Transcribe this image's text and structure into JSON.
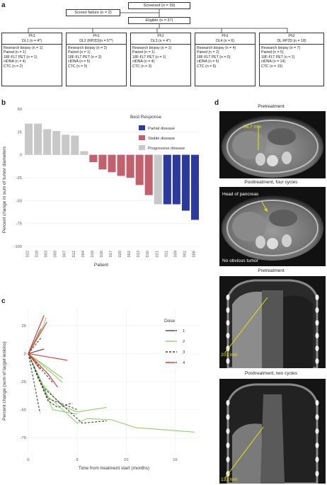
{
  "panel_a": {
    "letter": "a",
    "screened": "Screened (n = 39)",
    "screen_failure": "Screen failure (n = 2)",
    "eligible": "Eligible (n = 37)",
    "arms": [
      {
        "hdr1": "Ph1",
        "hdr2": "DL1 (n = 4*)",
        "lines": [
          "Research biopsy (n = 1)",
          "Paired (n = 1)",
          "18F-FLT PET (n = 1)",
          "ctDNA (n = 4)",
          "CTC (n = 2)"
        ]
      },
      {
        "hdr1": "Ph1",
        "hdr2": "DL2 (RP2D)(n = 5**)",
        "lines": [
          "Research biopsy (n = 2)",
          "Paired (n = 1)",
          "18F-FLT PET (n = 3)",
          "ctDNA (n = 5)",
          "CTC (n = 5)"
        ]
      },
      {
        "hdr1": "Ph1",
        "hdr2": "DL3 (n = 4*)",
        "lines": [
          "Research biopsy (n = 1)",
          "Paired (n = 1)",
          "18F-FLT PET (n = 1)",
          "ctDNA (n = 4)",
          "CTC (n = 3)"
        ]
      },
      {
        "hdr1": "Ph1",
        "hdr2": "DL4 (n = 6)",
        "lines": [
          "Research biopsy (n = 4)",
          "Paired (n = 2)",
          "18F-FLT PET (n = 0)",
          "ctDNA (n = 5)",
          "CTC (n = 5)"
        ]
      },
      {
        "hdr1": "Ph2",
        "hdr2": "DL RP2D (n = 18)",
        "lines": [
          "Research biopsy (n = 7)",
          "Paired (n = 5)",
          "18F-FLT PET (n = 1)",
          "ctDNA (n = 14)",
          "CTC (n = 15)"
        ]
      }
    ]
  },
  "panel_b": {
    "letter": "b",
    "ylabel": "Percent change in sum of tumor diameters",
    "xlabel": "Patient",
    "legend_title": "Best Response",
    "legend_items": [
      "Partial disease",
      "Stable disease",
      "Progressive disease"
    ],
    "colors": {
      "pd": "#c8c8c8",
      "sd": "#c2606e",
      "pr": "#2b3a9c"
    }
  },
  "panel_c": {
    "letter": "c",
    "ylabel": "Percent change (sum of target lesions)",
    "xlabel": "Time from treatment start (months)",
    "legend_title": "Dose",
    "legend_items": [
      "1",
      "2",
      "3",
      "4"
    ],
    "colors": [
      "#444444",
      "#8fcf6e",
      "#444444",
      "#d93030"
    ]
  },
  "panel_d": {
    "letter": "d",
    "titles": [
      "Pretreatment",
      "Posttreatment, four cycles",
      "Pretreatment",
      "Posttreatment, two cycles"
    ],
    "annotations": [
      "56.7 mm",
      "Head of pancreas",
      "No obvious tumor",
      "201 mm",
      "131 mm"
    ]
  },
  "chart_data": [
    {
      "type": "bar",
      "categories": [
        "022",
        "018",
        "003",
        "005",
        "007",
        "012",
        "004",
        "019",
        "016",
        "017",
        "020",
        "002",
        "013",
        "010",
        "021",
        "011",
        "009",
        "001",
        "006"
      ],
      "values": [
        34,
        34,
        28,
        26,
        22,
        21,
        4,
        -8,
        -16,
        -19,
        -23,
        -25,
        -33,
        -44,
        -54,
        -54,
        -54,
        -61,
        -71
      ],
      "response": [
        "pd",
        "pd",
        "pd",
        "pd",
        "pd",
        "pd",
        "pd",
        "sd",
        "sd",
        "sd",
        "sd",
        "sd",
        "sd",
        "sd",
        "pd",
        "pr",
        "pr",
        "pr",
        "pr"
      ],
      "yticks": [
        50,
        25,
        0,
        -25,
        -50,
        -75,
        -100
      ],
      "ylim": [
        -100,
        50
      ]
    },
    {
      "type": "line",
      "xticks": [
        0,
        5,
        10,
        15
      ],
      "yticks": [
        25,
        0,
        -25,
        -50,
        -75
      ],
      "xlim": [
        0,
        17.5
      ],
      "ylim": [
        -90,
        40
      ],
      "series": [
        {
          "name": "1",
          "dash": false,
          "points": [
            [
              0,
              0
            ],
            [
              1.1,
              18
            ]
          ]
        },
        {
          "name": "1",
          "dash": false,
          "points": [
            [
              0,
              0
            ],
            [
              1.3,
              22
            ]
          ]
        },
        {
          "name": "1",
          "dash": false,
          "points": [
            [
              0,
              0
            ],
            [
              1.6,
              4
            ]
          ]
        },
        {
          "name": "2",
          "dash": false,
          "points": [
            [
              0,
              0
            ],
            [
              1.6,
              26
            ],
            [
              1.8,
              32
            ]
          ]
        },
        {
          "name": "2",
          "dash": false,
          "points": [
            [
              0,
              0
            ],
            [
              2.5,
              -18
            ],
            [
              3.5,
              -26
            ]
          ]
        },
        {
          "name": "2",
          "dash": false,
          "points": [
            [
              0,
              0
            ],
            [
              1.5,
              -28
            ],
            [
              3.5,
              -47
            ],
            [
              5,
              -52
            ],
            [
              8,
              -48
            ]
          ]
        },
        {
          "name": "2",
          "dash": false,
          "points": [
            [
              0,
              0
            ],
            [
              2,
              -38
            ],
            [
              5,
              -62
            ],
            [
              6,
              -58
            ],
            [
              8.5,
              -59
            ],
            [
              11,
              -66
            ],
            [
              17,
              -70
            ]
          ]
        },
        {
          "name": "2",
          "dash": false,
          "points": [
            [
              0,
              0
            ],
            [
              2.5,
              -50
            ],
            [
              5,
              -54
            ]
          ]
        },
        {
          "name": "2",
          "dash": false,
          "points": [
            [
              0,
              0
            ],
            [
              3.5,
              -22
            ]
          ]
        },
        {
          "name": "3",
          "dash": true,
          "points": [
            [
              0,
              0
            ],
            [
              1.3,
              14
            ]
          ]
        },
        {
          "name": "3",
          "dash": true,
          "points": [
            [
              0,
              0
            ],
            [
              1,
              -22
            ],
            [
              2,
              -40
            ],
            [
              5,
              -50
            ]
          ]
        },
        {
          "name": "3",
          "dash": true,
          "points": [
            [
              0,
              0
            ],
            [
              2,
              -42
            ],
            [
              3,
              -48
            ],
            [
              4.5,
              -44
            ]
          ]
        },
        {
          "name": "3",
          "dash": true,
          "points": [
            [
              0,
              0
            ],
            [
              1.5,
              -30
            ],
            [
              5.5,
              -62
            ],
            [
              8,
              -60
            ]
          ]
        },
        {
          "name": "3",
          "dash": true,
          "points": [
            [
              0,
              0
            ],
            [
              1.2,
              -53
            ]
          ]
        },
        {
          "name": "3",
          "dash": true,
          "points": [
            [
              0,
              0
            ],
            [
              2.5,
              -26
            ]
          ]
        },
        {
          "name": "4",
          "dash": false,
          "points": [
            [
              0,
              0
            ],
            [
              1.6,
              34
            ]
          ]
        },
        {
          "name": "4",
          "dash": false,
          "points": [
            [
              0,
              0
            ],
            [
              1.9,
              28
            ]
          ]
        },
        {
          "name": "4",
          "dash": false,
          "points": [
            [
              0,
              0
            ],
            [
              4,
              -6
            ]
          ]
        },
        {
          "name": "4",
          "dash": false,
          "points": [
            [
              0,
              0
            ],
            [
              2,
              -18
            ],
            [
              3,
              -30
            ]
          ]
        },
        {
          "name": "4",
          "dash": false,
          "points": [
            [
              0,
              0
            ],
            [
              1.2,
              -14
            ]
          ]
        }
      ]
    }
  ]
}
